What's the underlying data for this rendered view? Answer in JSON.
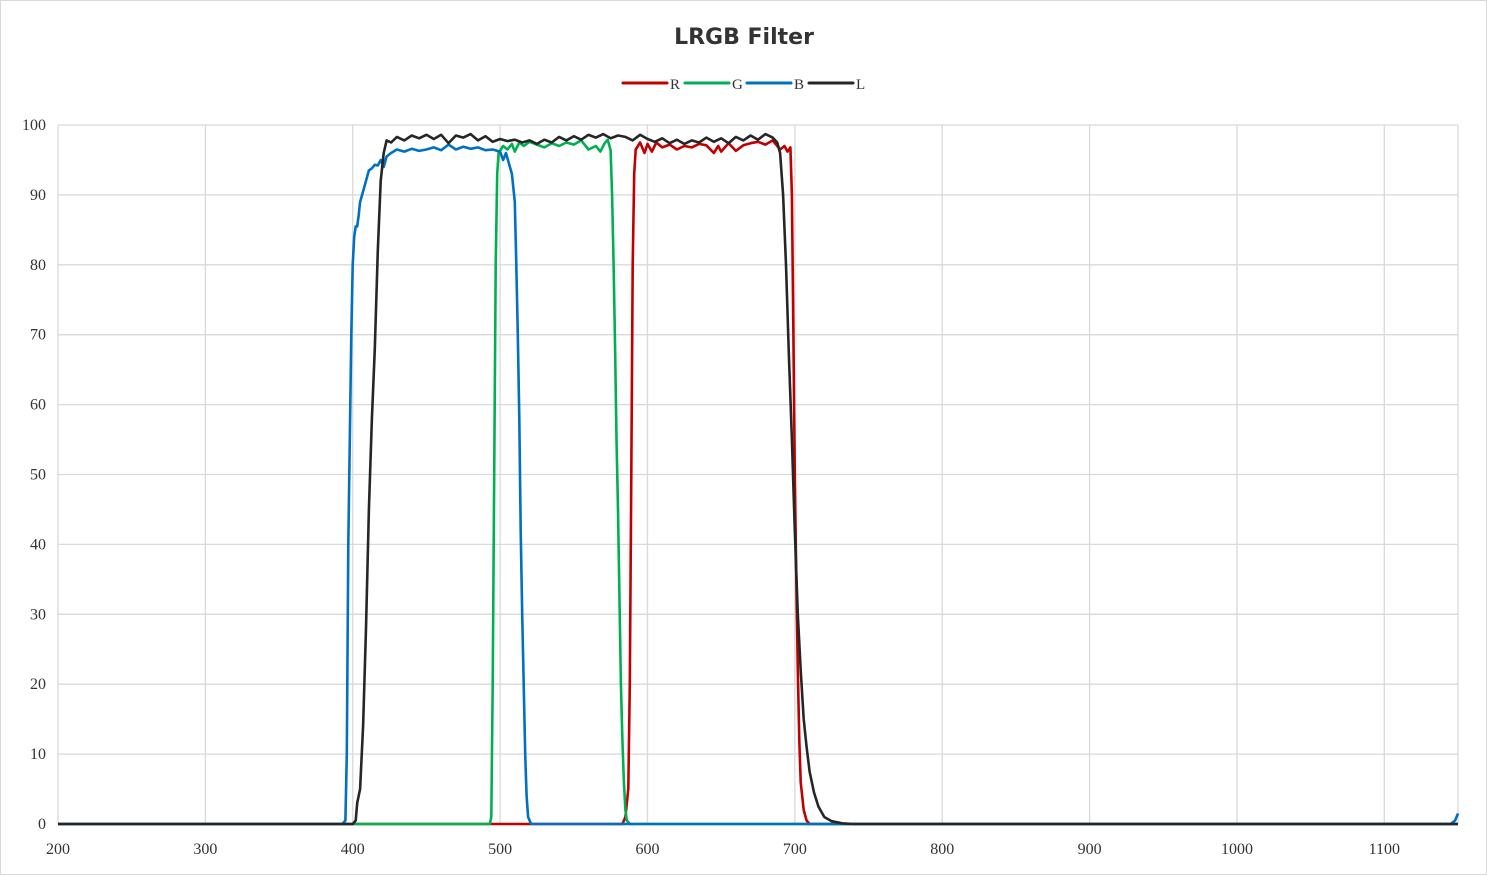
{
  "chart_data": {
    "type": "line",
    "title": "LRGB Filter",
    "xlabel": "",
    "ylabel": "",
    "xlim": [
      200,
      1150
    ],
    "ylim": [
      0,
      100
    ],
    "xticks": [
      200,
      300,
      400,
      500,
      600,
      700,
      800,
      900,
      1000,
      1100
    ],
    "yticks": [
      0,
      10,
      20,
      30,
      40,
      50,
      60,
      70,
      80,
      90,
      100
    ],
    "grid": true,
    "legend_placement": "top-center",
    "series": [
      {
        "name": "R",
        "color": "#c00000",
        "points": [
          [
            200,
            0
          ],
          [
            583,
            0
          ],
          [
            585,
            1
          ],
          [
            587,
            5
          ],
          [
            588,
            20
          ],
          [
            589,
            50
          ],
          [
            590,
            80
          ],
          [
            591,
            93
          ],
          [
            592,
            96.5
          ],
          [
            595,
            97.5
          ],
          [
            598,
            96
          ],
          [
            600,
            97.3
          ],
          [
            603,
            96.2
          ],
          [
            606,
            97.5
          ],
          [
            610,
            96.8
          ],
          [
            615,
            97.2
          ],
          [
            620,
            96.5
          ],
          [
            625,
            97
          ],
          [
            630,
            96.8
          ],
          [
            635,
            97.3
          ],
          [
            640,
            97.1
          ],
          [
            645,
            96
          ],
          [
            648,
            97
          ],
          [
            650,
            96.2
          ],
          [
            655,
            97.4
          ],
          [
            660,
            96.3
          ],
          [
            665,
            97.1
          ],
          [
            670,
            97.4
          ],
          [
            675,
            97.6
          ],
          [
            680,
            97.2
          ],
          [
            685,
            97.8
          ],
          [
            690,
            96.5
          ],
          [
            693,
            97
          ],
          [
            695,
            96.2
          ],
          [
            697,
            96.8
          ],
          [
            698,
            90
          ],
          [
            699,
            70
          ],
          [
            700,
            50
          ],
          [
            701,
            35
          ],
          [
            702,
            22
          ],
          [
            703,
            12
          ],
          [
            704,
            6
          ],
          [
            706,
            2
          ],
          [
            708,
            0.5
          ],
          [
            710,
            0
          ],
          [
            1150,
            0
          ]
        ]
      },
      {
        "name": "G",
        "color": "#00b050",
        "points": [
          [
            200,
            0
          ],
          [
            493,
            0
          ],
          [
            494,
            1
          ],
          [
            495,
            20
          ],
          [
            496,
            50
          ],
          [
            497,
            80
          ],
          [
            498,
            93
          ],
          [
            499,
            96
          ],
          [
            502,
            97
          ],
          [
            505,
            96.5
          ],
          [
            508,
            97.3
          ],
          [
            510,
            96.2
          ],
          [
            513,
            97.5
          ],
          [
            516,
            97
          ],
          [
            520,
            97.6
          ],
          [
            525,
            97.2
          ],
          [
            530,
            96.8
          ],
          [
            535,
            97.4
          ],
          [
            540,
            97
          ],
          [
            545,
            97.5
          ],
          [
            550,
            97.2
          ],
          [
            555,
            97.8
          ],
          [
            560,
            96.5
          ],
          [
            565,
            97
          ],
          [
            568,
            96.2
          ],
          [
            571,
            97.4
          ],
          [
            573,
            97.9
          ],
          [
            575,
            96.4
          ],
          [
            576,
            90
          ],
          [
            577,
            80
          ],
          [
            578,
            68
          ],
          [
            579,
            55
          ],
          [
            580,
            45
          ],
          [
            581,
            32
          ],
          [
            582,
            20
          ],
          [
            583,
            12
          ],
          [
            584,
            6
          ],
          [
            585,
            2
          ],
          [
            586,
            0.5
          ],
          [
            588,
            0
          ],
          [
            1150,
            0
          ]
        ]
      },
      {
        "name": "B",
        "color": "#0070c0",
        "points": [
          [
            200,
            0
          ],
          [
            393,
            0
          ],
          [
            395,
            0.5
          ],
          [
            396,
            10
          ],
          [
            397,
            40
          ],
          [
            398,
            55
          ],
          [
            399,
            70
          ],
          [
            400,
            80
          ],
          [
            401,
            84
          ],
          [
            402,
            85.5
          ],
          [
            403,
            85.5
          ],
          [
            404,
            87
          ],
          [
            405,
            89
          ],
          [
            407,
            90.5
          ],
          [
            409,
            92
          ],
          [
            411,
            93.5
          ],
          [
            413,
            93.8
          ],
          [
            415,
            94.3
          ],
          [
            417,
            94.2
          ],
          [
            419,
            95
          ],
          [
            421,
            94
          ],
          [
            423,
            95.5
          ],
          [
            426,
            96
          ],
          [
            430,
            96.5
          ],
          [
            435,
            96.2
          ],
          [
            440,
            96.6
          ],
          [
            445,
            96.3
          ],
          [
            450,
            96.5
          ],
          [
            455,
            96.8
          ],
          [
            460,
            96.4
          ],
          [
            465,
            97.2
          ],
          [
            470,
            96.5
          ],
          [
            475,
            96.9
          ],
          [
            480,
            96.6
          ],
          [
            485,
            96.8
          ],
          [
            490,
            96.4
          ],
          [
            495,
            96.5
          ],
          [
            500,
            96.2
          ],
          [
            502,
            95
          ],
          [
            504,
            96
          ],
          [
            506,
            94.5
          ],
          [
            508,
            93
          ],
          [
            510,
            89
          ],
          [
            511,
            80
          ],
          [
            512,
            70
          ],
          [
            513,
            58
          ],
          [
            514,
            42
          ],
          [
            515,
            30
          ],
          [
            516,
            20
          ],
          [
            517,
            10
          ],
          [
            518,
            4
          ],
          [
            519,
            1
          ],
          [
            521,
            0
          ],
          [
            1145,
            0
          ],
          [
            1148,
            0.5
          ],
          [
            1150,
            1.5
          ]
        ]
      },
      {
        "name": "L",
        "color": "#262626",
        "points": [
          [
            200,
            0
          ],
          [
            400,
            0
          ],
          [
            402,
            0.5
          ],
          [
            403,
            3
          ],
          [
            405,
            5
          ],
          [
            407,
            14
          ],
          [
            409,
            28
          ],
          [
            411,
            45
          ],
          [
            413,
            58
          ],
          [
            415,
            68
          ],
          [
            417,
            82
          ],
          [
            419,
            92
          ],
          [
            421,
            96
          ],
          [
            423,
            97.8
          ],
          [
            426,
            97.5
          ],
          [
            430,
            98.3
          ],
          [
            435,
            97.8
          ],
          [
            440,
            98.5
          ],
          [
            445,
            98.1
          ],
          [
            450,
            98.6
          ],
          [
            455,
            98
          ],
          [
            460,
            98.6
          ],
          [
            465,
            97.4
          ],
          [
            470,
            98.5
          ],
          [
            475,
            98.2
          ],
          [
            480,
            98.7
          ],
          [
            485,
            97.8
          ],
          [
            490,
            98.4
          ],
          [
            495,
            97.6
          ],
          [
            500,
            98
          ],
          [
            505,
            97.7
          ],
          [
            510,
            97.9
          ],
          [
            515,
            97.5
          ],
          [
            520,
            97.8
          ],
          [
            525,
            97.3
          ],
          [
            530,
            97.9
          ],
          [
            535,
            97.5
          ],
          [
            540,
            98.3
          ],
          [
            545,
            97.8
          ],
          [
            550,
            98.4
          ],
          [
            555,
            97.9
          ],
          [
            560,
            98.6
          ],
          [
            565,
            98.2
          ],
          [
            570,
            98.7
          ],
          [
            575,
            98.1
          ],
          [
            580,
            98.5
          ],
          [
            585,
            98.3
          ],
          [
            590,
            97.8
          ],
          [
            595,
            98.6
          ],
          [
            600,
            98
          ],
          [
            605,
            97.6
          ],
          [
            610,
            98.1
          ],
          [
            615,
            97.4
          ],
          [
            620,
            97.9
          ],
          [
            625,
            97.3
          ],
          [
            630,
            97.8
          ],
          [
            635,
            97.5
          ],
          [
            640,
            98.2
          ],
          [
            645,
            97.6
          ],
          [
            650,
            98.1
          ],
          [
            655,
            97.4
          ],
          [
            660,
            98.3
          ],
          [
            665,
            97.8
          ],
          [
            670,
            98.5
          ],
          [
            675,
            97.9
          ],
          [
            680,
            98.7
          ],
          [
            685,
            98.2
          ],
          [
            688,
            97.5
          ],
          [
            690,
            96
          ],
          [
            692,
            90
          ],
          [
            694,
            80
          ],
          [
            696,
            67
          ],
          [
            698,
            55
          ],
          [
            700,
            42
          ],
          [
            702,
            30
          ],
          [
            704,
            22
          ],
          [
            706,
            15
          ],
          [
            708,
            11
          ],
          [
            710,
            7.5
          ],
          [
            713,
            4.5
          ],
          [
            716,
            2.5
          ],
          [
            720,
            1
          ],
          [
            725,
            0.4
          ],
          [
            732,
            0.1
          ],
          [
            740,
            0
          ],
          [
            1150,
            0
          ]
        ]
      }
    ]
  }
}
